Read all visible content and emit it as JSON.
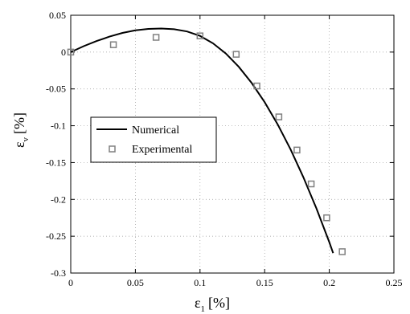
{
  "chart_data": {
    "type": "line",
    "xlabel": {
      "symbol": "ε",
      "subscript": "1",
      "unit": "[%]"
    },
    "ylabel": {
      "symbol": "ε",
      "subscript": "v",
      "unit": "[%]"
    },
    "xlim": [
      0,
      0.25
    ],
    "ylim": [
      -0.3,
      0.05
    ],
    "xticks": [
      0,
      0.05,
      0.1,
      0.15,
      0.2,
      0.25
    ],
    "xtick_labels": [
      "0",
      "0.05",
      "0.1",
      "0.15",
      "0.2",
      "0.25"
    ],
    "yticks": [
      0.05,
      0,
      -0.05,
      -0.1,
      -0.15,
      -0.2,
      -0.25,
      -0.3
    ],
    "ytick_labels": [
      "0.05",
      "0",
      "-0.05",
      "-0.1",
      "-0.15",
      "-0.2",
      "-0.25",
      "-0.3"
    ],
    "grid": true,
    "legend_position": "center-left",
    "series": [
      {
        "name": "Numerical",
        "style": "line",
        "color": "#000000",
        "points": [
          [
            0,
            0
          ],
          [
            0.01,
            0.008
          ],
          [
            0.02,
            0.015
          ],
          [
            0.03,
            0.021
          ],
          [
            0.04,
            0.026
          ],
          [
            0.05,
            0.0295
          ],
          [
            0.06,
            0.0315
          ],
          [
            0.07,
            0.032
          ],
          [
            0.08,
            0.031
          ],
          [
            0.09,
            0.028
          ],
          [
            0.1,
            0.022
          ],
          [
            0.11,
            0.012
          ],
          [
            0.12,
            -0.002
          ],
          [
            0.13,
            -0.02
          ],
          [
            0.14,
            -0.042
          ],
          [
            0.15,
            -0.068
          ],
          [
            0.16,
            -0.098
          ],
          [
            0.17,
            -0.132
          ],
          [
            0.18,
            -0.17
          ],
          [
            0.19,
            -0.212
          ],
          [
            0.2,
            -0.258
          ],
          [
            0.203,
            -0.273
          ]
        ]
      },
      {
        "name": "Experimental",
        "style": "marker",
        "marker": "square",
        "color": "#808080",
        "points": [
          [
            0,
            0
          ],
          [
            0.033,
            0.01
          ],
          [
            0.066,
            0.02
          ],
          [
            0.1,
            0.022
          ],
          [
            0.128,
            -0.003
          ],
          [
            0.144,
            -0.046
          ],
          [
            0.161,
            -0.088
          ],
          [
            0.175,
            -0.133
          ],
          [
            0.186,
            -0.179
          ],
          [
            0.198,
            -0.225
          ],
          [
            0.21,
            -0.271
          ]
        ]
      }
    ]
  }
}
